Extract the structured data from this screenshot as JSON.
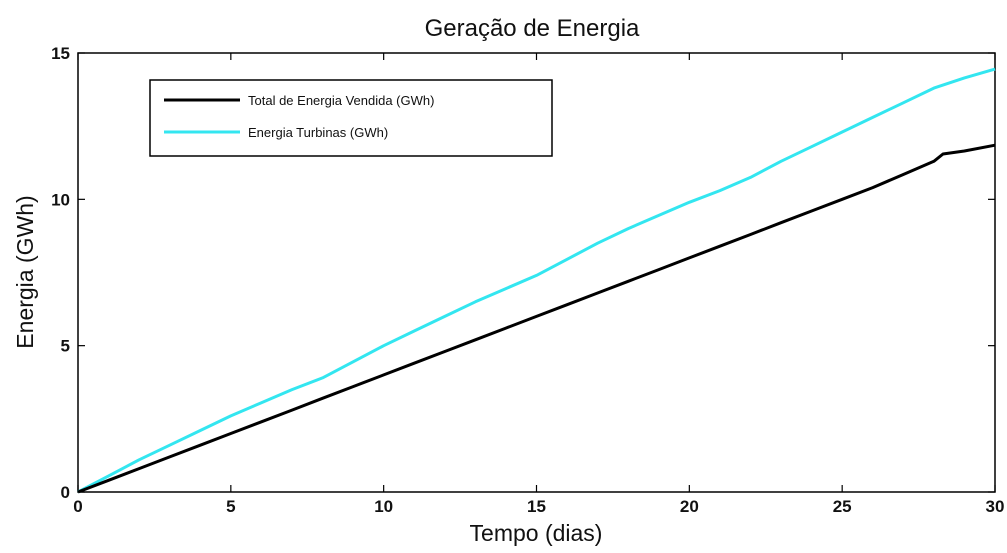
{
  "chart_data": {
    "type": "line",
    "title": "Geração de Energia",
    "xlabel": "Tempo (dias)",
    "ylabel": "Energia (GWh)",
    "xlim": [
      0,
      30
    ],
    "ylim": [
      0,
      15
    ],
    "xticks": [
      0,
      5,
      10,
      15,
      20,
      25,
      30
    ],
    "yticks": [
      0,
      5,
      10,
      15
    ],
    "grid": false,
    "legend_position": "top-left",
    "series": [
      {
        "name": "Total de Energia Vendida (GWh)",
        "color": "#000000",
        "x": [
          0,
          1,
          2,
          3,
          4,
          5,
          6,
          7,
          8,
          9,
          10,
          11,
          12,
          13,
          14,
          15,
          16,
          17,
          18,
          19,
          20,
          21,
          22,
          23,
          24,
          25,
          26,
          27,
          28,
          28.3,
          29,
          30
        ],
        "y": [
          0,
          0.4,
          0.8,
          1.2,
          1.6,
          2.0,
          2.4,
          2.8,
          3.2,
          3.6,
          4.0,
          4.4,
          4.8,
          5.2,
          5.6,
          6.0,
          6.4,
          6.8,
          7.2,
          7.6,
          8.0,
          8.4,
          8.8,
          9.2,
          9.6,
          10.0,
          10.4,
          10.85,
          11.3,
          11.55,
          11.65,
          11.85
        ]
      },
      {
        "name": "Energia Turbinas (GWh)",
        "color": "#33e6f0",
        "x": [
          0,
          1,
          2,
          3,
          4,
          5,
          6,
          7,
          8,
          9,
          10,
          11,
          12,
          13,
          14,
          15,
          16,
          17,
          18,
          19,
          20,
          21,
          22,
          23,
          24,
          25,
          26,
          27,
          28,
          29,
          30
        ],
        "y": [
          0,
          0.55,
          1.1,
          1.6,
          2.1,
          2.6,
          3.05,
          3.5,
          3.9,
          4.45,
          5.0,
          5.5,
          6.0,
          6.5,
          6.95,
          7.4,
          7.95,
          8.5,
          9.0,
          9.45,
          9.9,
          10.3,
          10.75,
          11.3,
          11.8,
          12.3,
          12.8,
          13.3,
          13.8,
          14.15,
          14.45
        ]
      }
    ]
  }
}
